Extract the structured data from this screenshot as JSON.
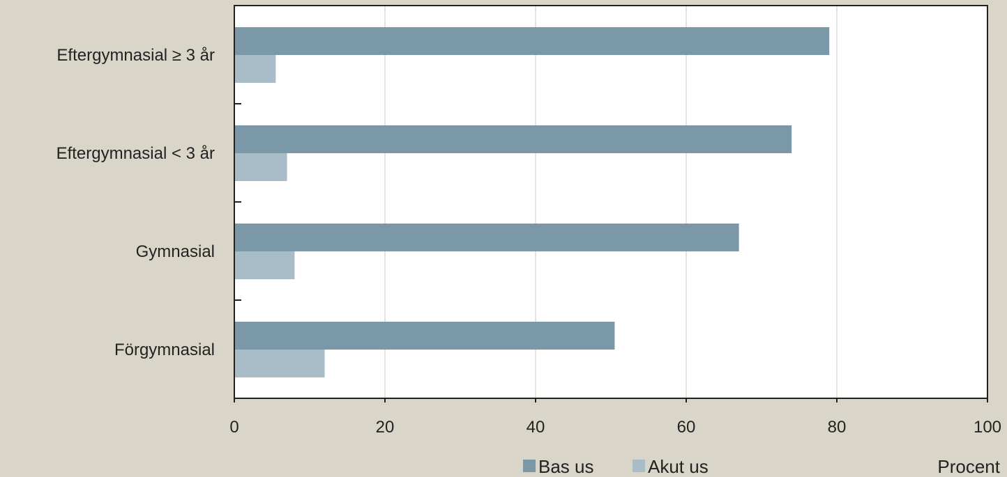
{
  "chart_data": {
    "type": "bar",
    "orientation": "horizontal",
    "categories": [
      "Eftergymnasial ≥ 3 år",
      "Eftergymnasial < 3 år",
      "Gymnasial",
      "Förgymnasial"
    ],
    "series": [
      {
        "name": "Bas us",
        "values": [
          79,
          74,
          67,
          50.5
        ],
        "color": "#7a98a8"
      },
      {
        "name": "Akut us",
        "values": [
          5.5,
          7,
          8,
          12
        ],
        "color": "#a8bdc8"
      }
    ],
    "xlim": [
      0,
      100
    ],
    "xticks": [
      0,
      20,
      40,
      60,
      80,
      100
    ],
    "xlabel": "Procent",
    "grid": true,
    "legend": "bottom-right",
    "background": "#d9d6c9",
    "plot_background": "#ffffff",
    "grid_color": "#e4e2da"
  }
}
